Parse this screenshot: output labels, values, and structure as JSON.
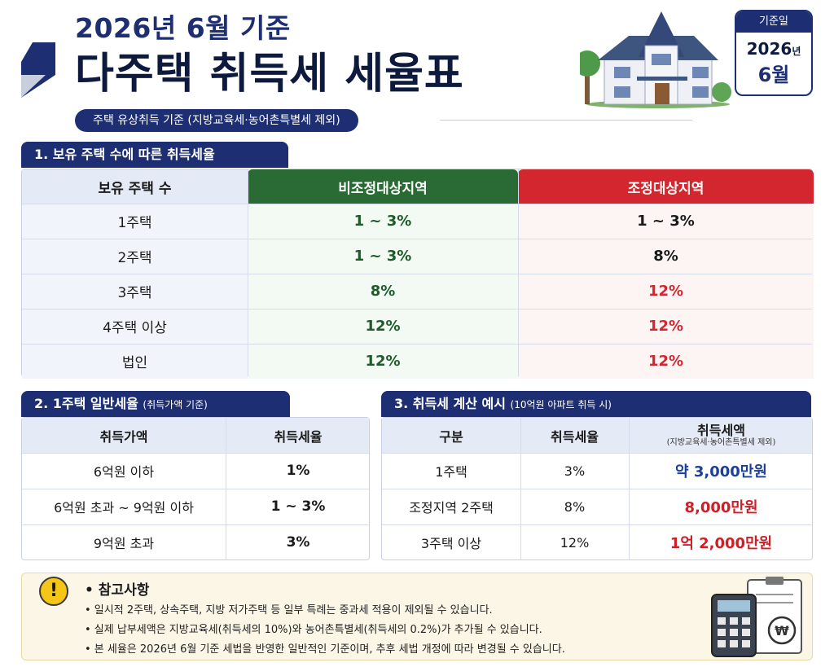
{
  "header": {
    "subtitle": "2026년 6월 기준",
    "title": "다주택 취득세 세율표",
    "basis": "주택 유상취득 기준 (지방교육세·농어촌특별세 제외)"
  },
  "date_badge": {
    "label": "기준일",
    "year": "2026",
    "year_suffix": "년",
    "month": "6월"
  },
  "section1": {
    "title": "1. 보유 주택 수에 따른 취득세율",
    "headers": [
      "보유 주택 수",
      "비조정대상지역",
      "조정대상지역"
    ],
    "rows": [
      [
        "1주택",
        "1 ~ 3%",
        "1 ~ 3%"
      ],
      [
        "2주택",
        "1 ~ 3%",
        "8%"
      ],
      [
        "3주택",
        "8%",
        "12%"
      ],
      [
        "4주택 이상",
        "12%",
        "12%"
      ],
      [
        "법인",
        "12%",
        "12%"
      ]
    ]
  },
  "section2": {
    "title": "2. 1주택 일반세율",
    "title_note": "(취득가액 기준)",
    "headers": [
      "취득가액",
      "취득세율"
    ],
    "rows": [
      [
        "6억원 이하",
        "1%"
      ],
      [
        "6억원 초과 ~ 9억원 이하",
        "1 ~ 3%"
      ],
      [
        "9억원 초과",
        "3%"
      ]
    ]
  },
  "section3": {
    "title": "3. 취득세 계산 예시",
    "title_note": "(10억원 아파트 취득 시)",
    "headers": [
      "구분",
      "취득세율",
      "취득세액"
    ],
    "header_sub": "(지방교육세·농어촌특별세 제외)",
    "rows": [
      [
        "1주택",
        "3%",
        "약 3,000만원"
      ],
      [
        "조정지역 2주택",
        "8%",
        "8,000만원"
      ],
      [
        "3주택 이상",
        "12%",
        "1억 2,000만원"
      ]
    ]
  },
  "notes": {
    "title": "• 참고사항",
    "items": [
      "• 일시적 2주택, 상속주택, 지방 저가주택 등 일부 특례는 중과세 적용이 제외될 수 있습니다.",
      "• 실제 납부세액은 지방교육세(취득세의 10%)와 농어촌특별세(취득세의 0.2%)가 추가될 수 있습니다.",
      "• 본 세율은 2026년 6월 기준 세법을 반영한 일반적인 기준이며, 추후 세법 개정에 따라 변경될 수 있습니다."
    ]
  },
  "colors": {
    "navy": "#1d2f72",
    "green": "#2a6b35",
    "red": "#d3262f",
    "amount_blue": "#1d3f9a",
    "amount_red": "#cc1f26"
  }
}
